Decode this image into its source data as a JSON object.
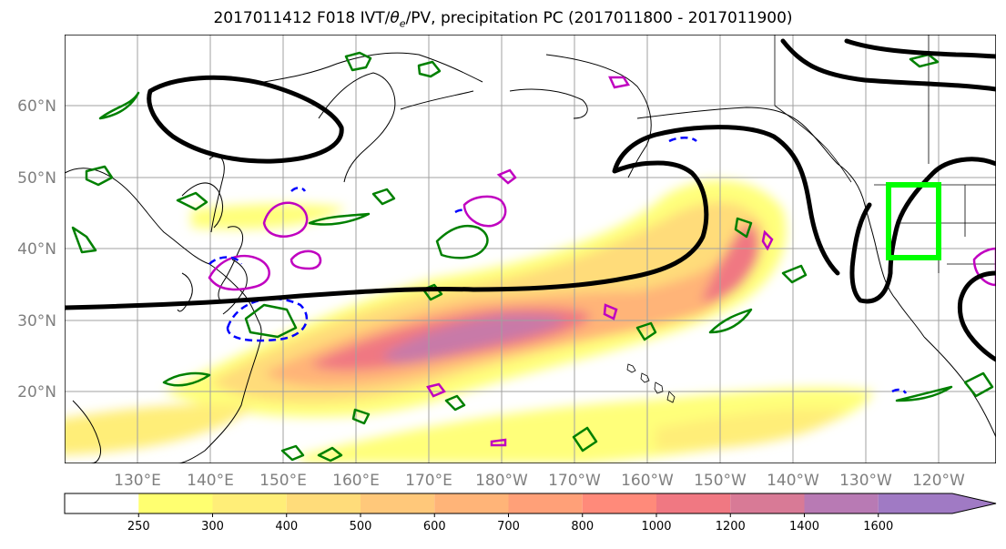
{
  "title": {
    "prefix": "2017011412 F018 IVT/",
    "theta_symbol": "θ",
    "theta_subscript": "e",
    "suffix": "/PV, precipitation PC (2017011800 - 2017011900)"
  },
  "map": {
    "lat_labels": [
      "60°N",
      "50°N",
      "40°N",
      "30°N",
      "20°N"
    ],
    "lon_labels": [
      "130°E",
      "140°E",
      "150°E",
      "160°E",
      "170°E",
      "180°W",
      "170°W",
      "160°W",
      "150°W",
      "140°W",
      "130°W",
      "120°W"
    ],
    "colors": {
      "ivt_contour": "#000000",
      "theta_e_contour": "#008000",
      "pv_positive": "#c000c0",
      "pv_negative": "#0000ff",
      "region_box": "#00ff00",
      "grid": "#a0a0a0",
      "coast": "#000000"
    }
  },
  "colorbar": {
    "levels": [
      "250",
      "300",
      "400",
      "500",
      "600",
      "700",
      "800",
      "1000",
      "1200",
      "1400",
      "1600"
    ],
    "colors": [
      "#ffffff",
      "#ffff70",
      "#ffee78",
      "#ffdc7a",
      "#ffc87a",
      "#ffb478",
      "#ffa078",
      "#ff8a7a",
      "#f07882",
      "#d87a96",
      "#b87ab4",
      "#a07ac4"
    ]
  }
}
